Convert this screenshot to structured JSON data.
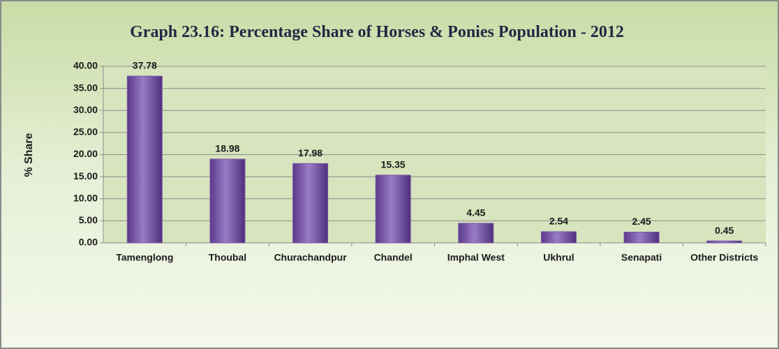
{
  "chart_data": {
    "type": "bar",
    "title": "Graph 23.16: Percentage Share of Horses & Ponies Population - 2012",
    "y_label": "% Share",
    "categories": [
      "Tamenglong",
      "Thoubal",
      "Churachandpur",
      "Chandel",
      "Imphal West",
      "Ukhrul",
      "Senapati",
      "Other Districts"
    ],
    "values": [
      37.78,
      18.98,
      17.98,
      15.35,
      4.45,
      2.54,
      2.45,
      0.45
    ],
    "color": "#7a58a8",
    "ylim": [
      0,
      40
    ],
    "yticks": [
      {
        "value": 0,
        "label": "0.00"
      },
      {
        "value": 5,
        "label": "5.00"
      },
      {
        "value": 10,
        "label": "10.00"
      },
      {
        "value": 15,
        "label": "15.00"
      },
      {
        "value": 20,
        "label": "20.00"
      },
      {
        "value": 25,
        "label": "25.00"
      },
      {
        "value": 30,
        "label": "30.00"
      },
      {
        "value": 35,
        "label": "35.00"
      },
      {
        "value": 40,
        "label": "40.00"
      }
    ],
    "grid": true
  }
}
